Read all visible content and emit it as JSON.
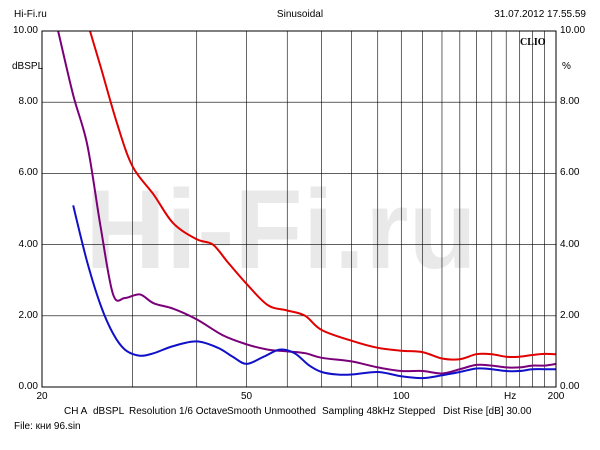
{
  "header": {
    "left": "Hi-Fi.ru",
    "center": "Sinusoidal",
    "right": "31.07.2012 17.55.59"
  },
  "watermark": {
    "text": "Hi-Fi.ru",
    "color": "#d4d4d4"
  },
  "brand": "CLIO",
  "footer": {
    "settings": [
      "CH A",
      "dBSPL",
      "Resolution 1/6 Octave",
      "Smooth Unmoothed",
      "Sampling 48kHz",
      "Stepped",
      "Dist Rise [dB] 30.00"
    ],
    "file": "File: кни 96.sin"
  },
  "colors": {
    "red": "#e00000",
    "purple": "#7a007a",
    "blue": "#1010c8",
    "grid": "#000000"
  },
  "chart_data": {
    "type": "line",
    "title": "Sinusoidal",
    "xscale": "log",
    "xlim": [
      20,
      200
    ],
    "ylim": [
      0,
      10
    ],
    "x_ticks": [
      {
        "value": 20,
        "label": "20"
      },
      {
        "value": 50,
        "label": "50"
      },
      {
        "value": 100,
        "label": "100"
      },
      {
        "value": 200,
        "label": "200"
      }
    ],
    "x_unit": "Hz",
    "y_ticks": [
      "0.00",
      "2.00",
      "4.00",
      "6.00",
      "8.00",
      "10.00"
    ],
    "ylabel_left": "dBSPL",
    "ylabel_right": "%",
    "series": [
      {
        "name": "red",
        "color": "#e00000",
        "x": [
          24.8,
          26.0,
          28.0,
          30.0,
          33.0,
          36.0,
          40.0,
          43.0,
          46.0,
          50.0,
          55.0,
          60.0,
          65.0,
          70.0,
          80.0,
          90.0,
          100.0,
          110.0,
          120.0,
          130.0,
          140.0,
          150.0,
          160.0,
          170.0,
          180.0,
          190.0,
          200.0
        ],
        "y": [
          10.0,
          9.0,
          7.4,
          6.2,
          5.4,
          4.6,
          4.15,
          4.0,
          3.5,
          2.9,
          2.3,
          2.15,
          2.0,
          1.6,
          1.3,
          1.1,
          1.02,
          0.98,
          0.8,
          0.78,
          0.92,
          0.92,
          0.85,
          0.85,
          0.9,
          0.93,
          0.92
        ]
      },
      {
        "name": "purple",
        "color": "#7a007a",
        "x": [
          21.5,
          23.0,
          24.5,
          26.0,
          27.5,
          29.0,
          31.0,
          33.0,
          36.0,
          40.0,
          45.0,
          50.0,
          55.0,
          60.0,
          65.0,
          70.0,
          80.0,
          90.0,
          100.0,
          110.0,
          120.0,
          130.0,
          140.0,
          150.0,
          160.0,
          170.0,
          180.0,
          190.0,
          200.0
        ],
        "y": [
          10.0,
          8.2,
          6.8,
          4.5,
          2.6,
          2.5,
          2.6,
          2.35,
          2.2,
          1.9,
          1.45,
          1.2,
          1.05,
          1.0,
          0.95,
          0.82,
          0.72,
          0.55,
          0.45,
          0.45,
          0.38,
          0.5,
          0.62,
          0.6,
          0.55,
          0.55,
          0.6,
          0.6,
          0.65
        ]
      },
      {
        "name": "blue",
        "color": "#1010c8",
        "x": [
          23.0,
          24.5,
          26.0,
          27.5,
          29.0,
          31.0,
          33.0,
          36.0,
          40.0,
          44.0,
          47.0,
          50.0,
          54.0,
          58.0,
          62.0,
          66.0,
          70.0,
          75.0,
          80.0,
          90.0,
          100.0,
          110.0,
          120.0,
          130.0,
          140.0,
          150.0,
          160.0,
          170.0,
          180.0,
          190.0,
          200.0
        ],
        "y": [
          5.1,
          3.5,
          2.3,
          1.5,
          1.05,
          0.88,
          0.95,
          1.15,
          1.28,
          1.1,
          0.85,
          0.65,
          0.85,
          1.05,
          0.95,
          0.62,
          0.42,
          0.35,
          0.35,
          0.42,
          0.3,
          0.25,
          0.33,
          0.42,
          0.52,
          0.5,
          0.45,
          0.45,
          0.5,
          0.5,
          0.5
        ]
      }
    ]
  }
}
